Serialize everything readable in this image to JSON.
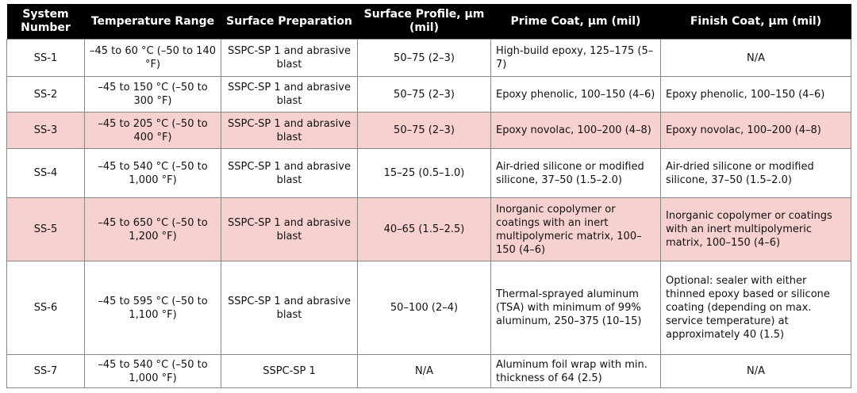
{
  "table": {
    "header": [
      "System Number",
      "Temperature Range",
      "Surface Preparation",
      "Surface Profile, µm (mil)",
      "Prime Coat, µm (mil)",
      "Finish Coat, µm (mil)"
    ],
    "rows": [
      [
        "SS-1",
        "–45 to 60 °C (–50 to 140 °F)",
        "SSPC-SP 1 and abrasive blast",
        "50–75 (2–3)",
        "High-build epoxy, 125–175 (5–7)",
        "N/A"
      ],
      [
        "SS-2",
        "–45 to 150 °C (–50 to 300 °F)",
        "SSPC-SP 1 and abrasive blast",
        "50–75 (2–3)",
        "Epoxy phenolic, 100–150 (4–6)",
        "Epoxy phenolic, 100–150 (4–6)"
      ],
      [
        "SS-3",
        "–45 to 205 °C (–50 to 400 °F)",
        "SSPC-SP 1 and abrasive blast",
        "50–75 (2–3)",
        "Epoxy novolac, 100–200 (4–8)",
        "Epoxy novolac, 100–200 (4–8)"
      ],
      [
        "SS-4",
        "–45 to 540 °C (–50 to 1,000 °F)",
        "SSPC-SP 1 and abrasive blast",
        "15–25 (0.5–1.0)",
        "Air-dried silicone or modified silicone, 37–50 (1.5–2.0)",
        "Air-dried silicone or modified silicone, 37–50 (1.5–2.0)"
      ],
      [
        "SS-5",
        "–45 to 650 °C (–50 to 1,200 °F)",
        "SSPC-SP 1 and abrasive blast",
        "40–65 (1.5–2.5)",
        "Inorganic copolymer or coatings with an inert multipolymeric matrix, 100–150 (4–6)",
        "Inorganic copolymer or coatings with an inert multipolymeric matrix, 100–150 (4–6)"
      ],
      [
        "SS-6",
        "–45 to 595 °C (–50 to 1,100 °F)",
        "SSPC-SP 1 and abrasive blast",
        "50–100 (2–4)",
        "Thermal-sprayed aluminum (TSA) with minimum of 99% aluminum, 250–375 (10–15)",
        "Optional: sealer with either thinned epoxy based or silicone coating (depending on max. service temperature) at approximately 40 (1.5)"
      ],
      [
        "SS-7",
        "–45 to 540 °C (–50 to 1,000 °F)",
        "SSPC-SP 1",
        "N/A",
        "Aluminum foil wrap with min. thickness of 64 (2.5)",
        "N/A"
      ]
    ]
  }
}
